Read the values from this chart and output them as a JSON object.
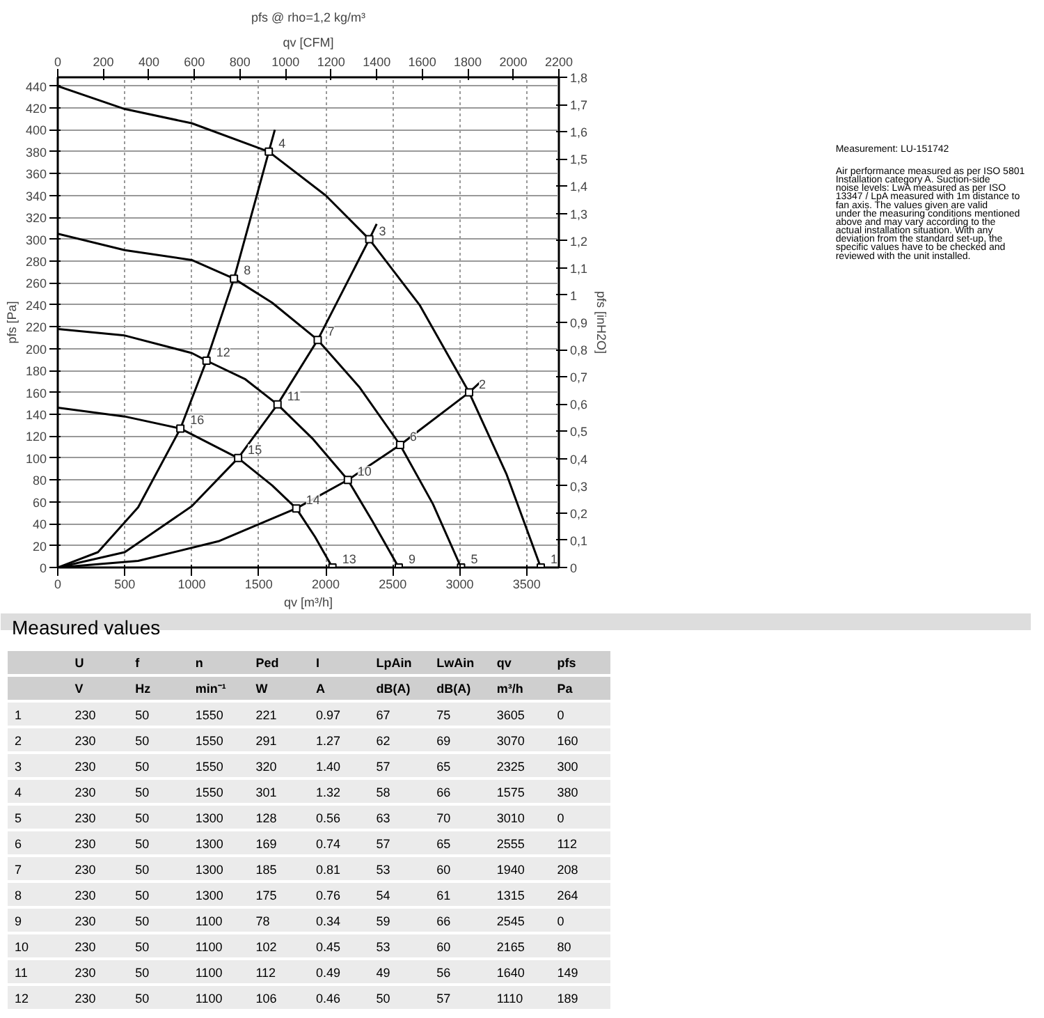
{
  "chart_data": {
    "type": "line",
    "title": "pfs @ rho=1,2 kg/m³",
    "xlabel": "qv [m³/h]",
    "x2label": "qv [CFM]",
    "ylabel": "pfs [Pa]",
    "y2label": "pfs [inH2O]",
    "xlim": [
      0,
      3740
    ],
    "xticks": [
      0,
      500,
      1000,
      1500,
      2000,
      2500,
      3000,
      3500
    ],
    "x2lim": [
      0,
      2200
    ],
    "x2ticks": [
      0,
      200,
      400,
      600,
      800,
      1000,
      1200,
      1400,
      1600,
      1800,
      2000,
      2200
    ],
    "ylim": [
      0,
      448
    ],
    "yticks": [
      0,
      20,
      40,
      60,
      80,
      100,
      120,
      140,
      160,
      180,
      200,
      220,
      240,
      260,
      280,
      300,
      320,
      340,
      360,
      380,
      400,
      420,
      440
    ],
    "y2lim": [
      0,
      1.8
    ],
    "y2ticks": [
      0,
      {
        "value": 0.1,
        "label": "0,1"
      },
      {
        "value": 0.2,
        "label": "0,2"
      },
      {
        "value": 0.3,
        "label": "0,3"
      },
      {
        "value": 0.4,
        "label": "0,4"
      },
      {
        "value": 0.5,
        "label": "0,5"
      },
      {
        "value": 0.6,
        "label": "0,6"
      },
      {
        "value": 0.7,
        "label": "0,7"
      },
      {
        "value": 0.8,
        "label": "0,8"
      },
      {
        "value": 0.9,
        "label": "0,9"
      },
      1,
      {
        "value": 1.1,
        "label": "1,1"
      },
      {
        "value": 1.2,
        "label": "1,2"
      },
      {
        "value": 1.3,
        "label": "1,3"
      },
      {
        "value": 1.4,
        "label": "1,4"
      },
      {
        "value": 1.5,
        "label": "1,5"
      },
      {
        "value": 1.6,
        "label": "1,6"
      },
      {
        "value": 1.7,
        "label": "1,7"
      },
      {
        "value": 1.8,
        "label": "1,8"
      }
    ],
    "grid": true,
    "series": [
      {
        "color": "#000000",
        "x": [
          0,
          500,
          1000,
          1575,
          2000,
          2325,
          2700,
          3070,
          3350,
          3605
        ],
        "values": [
          440,
          419,
          406,
          380,
          340,
          300,
          240,
          160,
          85,
          0
        ]
      },
      {
        "color": "#000000",
        "x": [
          0,
          500,
          1000,
          1315,
          1600,
          1940,
          2250,
          2555,
          2800,
          3010
        ],
        "values": [
          305,
          290,
          281,
          264,
          242,
          208,
          165,
          112,
          58,
          0
        ]
      },
      {
        "color": "#000000",
        "x": [
          0,
          500,
          1000,
          1110,
          1400,
          1640,
          1900,
          2165,
          2350,
          2545
        ],
        "values": [
          218,
          212,
          196,
          189,
          172,
          149,
          118,
          80,
          42,
          0
        ]
      },
      {
        "color": "#000000",
        "x": [
          0,
          500,
          915,
          1346,
          1600,
          1780,
          1920,
          2050
        ],
        "values": [
          146,
          138,
          127,
          100,
          75,
          54,
          28,
          0
        ]
      },
      {
        "color": "#000000",
        "x": [
          0,
          300,
          600,
          915,
          1110,
          1315,
          1575,
          1620
        ],
        "values": [
          0,
          14,
          55,
          127,
          189,
          264,
          380,
          400
        ]
      },
      {
        "color": "#000000",
        "x": [
          0,
          500,
          1000,
          1346,
          1640,
          1940,
          2325,
          2380
        ],
        "values": [
          0,
          14,
          56,
          100,
          149,
          208,
          300,
          314
        ]
      },
      {
        "color": "#000000",
        "x": [
          0,
          600,
          1200,
          1780,
          2165,
          2555,
          3070,
          3150
        ],
        "values": [
          0,
          6,
          24,
          54,
          80,
          112,
          160,
          169
        ]
      },
      {
        "type": "scatter",
        "marker": "square",
        "color": "#000000",
        "x": [
          3605,
          3070,
          2325,
          1575,
          3010,
          2555,
          1940,
          1315,
          2545,
          2165,
          1640,
          1110,
          2050,
          1780,
          1346,
          915
        ],
        "values": [
          0,
          160,
          300,
          380,
          0,
          112,
          208,
          264,
          0,
          80,
          149,
          189,
          0,
          54,
          100,
          127
        ]
      }
    ],
    "annotations": [
      "Measured values",
      "Measurement: LU-151742",
      "Air performance measured as per ISO 5801 Installation category A. Suction-side noise levels: LwA measured as per ISO 13347 / LpA measured with 1m distance to fan axis. The values given are valid under the measuring conditions mentioned above and may vary according to the actual installation situation. With any deviation from the standard set-up, the specific values have to be checked and reviewed with the unit installed.",
      "U f n Ped I LpAin LwAin qv pfs",
      "V Hz min⁻¹ W A dB(A) dB(A) m³/h Pa",
      "1 230 50 1550 221 0.97 67 75 3605 0",
      "2 230 50 1550 291 1.27 62 69 3070 160",
      "3 230 50 1550 320 1.40 57 65 2325 300",
      "4 230 50 1550 301 1.32 58 66 1575 380",
      "5 230 50 1300 128 0.56 63 70 3010 0",
      "6 230 50 1300 169 0.74 57 65 2555 112",
      "7 230 50 1300 185 0.81 53 60 1940 208",
      "8 230 50 1300 175 0.76 54 61 1315 264",
      "9 230 50 1100 78 0.34 59 66 2545 0",
      "10 230 50 1100 102 0.45 53 60 2165 80",
      "11 230 50 1100 112 0.49 49 56 1640 149",
      "12 230 50 1100 106 0.46 50 57 1110 189",
      {
        "text": "1",
        "x": 3605,
        "y": 0
      },
      {
        "text": "2",
        "x": 3070,
        "y": 160
      },
      {
        "text": "3",
        "x": 2325,
        "y": 300
      },
      {
        "text": "4",
        "x": 1575,
        "y": 380
      },
      {
        "text": "5",
        "x": 3010,
        "y": 0
      },
      {
        "text": "6",
        "x": 2555,
        "y": 112
      },
      {
        "text": "7",
        "x": 1940,
        "y": 208
      },
      {
        "text": "8",
        "x": 1315,
        "y": 264
      },
      {
        "text": "9",
        "x": 2545,
        "y": 0
      },
      {
        "text": "10",
        "x": 2165,
        "y": 80
      },
      {
        "text": "11",
        "x": 1640,
        "y": 149
      },
      {
        "text": "12",
        "x": 1110,
        "y": 189
      },
      {
        "text": "13",
        "x": 2050,
        "y": 0
      },
      {
        "text": "14",
        "x": 1780,
        "y": 54
      },
      {
        "text": "15",
        "x": 1346,
        "y": 100
      },
      {
        "text": "16",
        "x": 915,
        "y": 127
      }
    ]
  }
}
